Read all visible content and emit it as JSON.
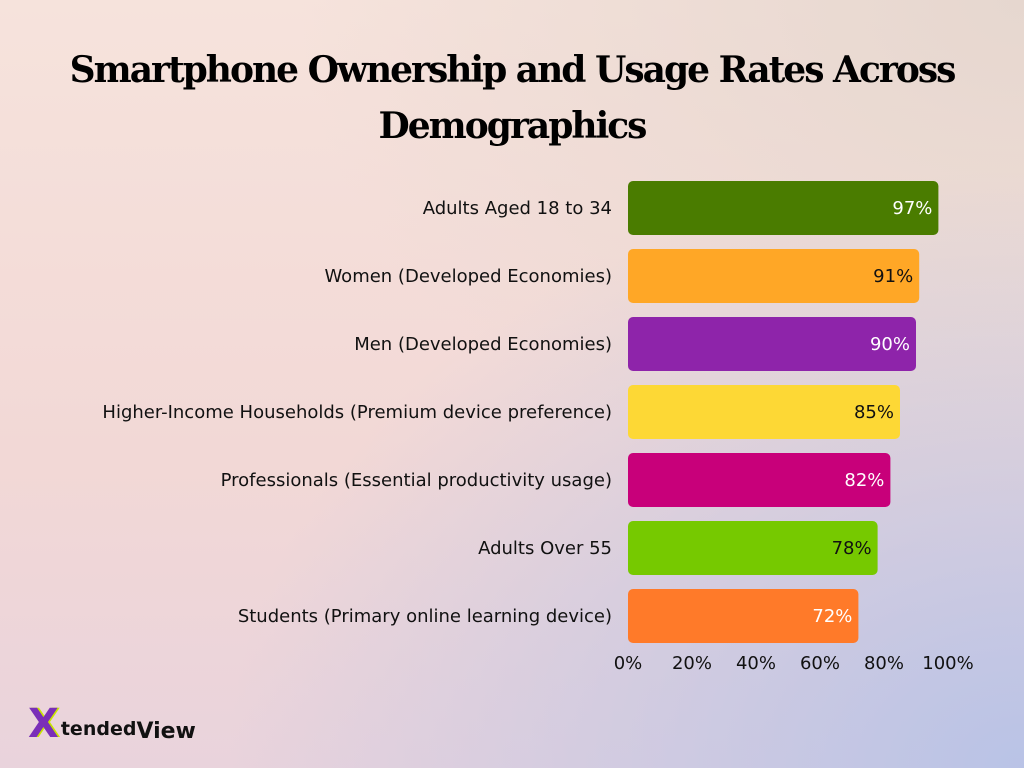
{
  "chart_data": {
    "type": "bar",
    "orientation": "horizontal",
    "title": "Smartphone Ownership and Usage Rates Across Demographics",
    "categories": [
      "Adults Aged 18 to 34",
      "Women (Developed Economies)",
      "Men (Developed Economies)",
      "Higher-Income Households (Premium device preference)",
      "Professionals (Essential productivity usage)",
      "Adults Over 55",
      "Students (Primary online learning device)"
    ],
    "values": [
      97,
      91,
      90,
      85,
      82,
      78,
      72
    ],
    "value_labels": [
      "97%",
      "91%",
      "90%",
      "85%",
      "82%",
      "78%",
      "72%"
    ],
    "colors": [
      "#4a7c00",
      "#ffa726",
      "#8e24aa",
      "#fdd835",
      "#c8007a",
      "#76c900",
      "#ff7a29"
    ],
    "value_label_colors": [
      "#ffffff",
      "#111111",
      "#ffffff",
      "#111111",
      "#ffffff",
      "#111111",
      "#ffffff"
    ],
    "xlim": [
      0,
      100
    ],
    "xticks": [
      0,
      20,
      40,
      60,
      80,
      100
    ],
    "xtick_labels": [
      "0%",
      "20%",
      "40%",
      "60%",
      "80%",
      "100%"
    ],
    "grid": false,
    "xlabel": "",
    "ylabel": ""
  },
  "logo": {
    "mark": "X",
    "word1": "tended",
    "word2": "View"
  }
}
